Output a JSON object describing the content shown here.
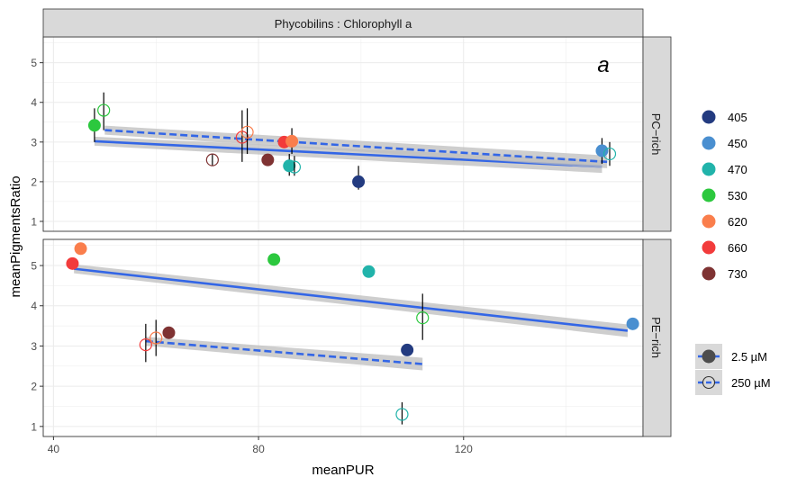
{
  "chart_data": {
    "type": "scatter",
    "facet_title": "Phycobilins : Chlorophyll a",
    "panel_label": "a",
    "xlabel": "meanPUR",
    "ylabel": "meanPigmentsRatio",
    "xlim": [
      38,
      155
    ],
    "x_ticks": [
      40,
      80,
      120
    ],
    "y_ticks": [
      1,
      2,
      3,
      4,
      5
    ],
    "grid": true,
    "legend_position": "right",
    "colors": {
      "405": "#233B80",
      "450": "#4A8FD0",
      "470": "#21B3AA",
      "530": "#2CC83E",
      "620": "#FA7E4C",
      "660": "#F23B3B",
      "730": "#7F3333"
    },
    "legend_wavelength": {
      "entries": [
        {
          "label": "405",
          "color": "#233B80"
        },
        {
          "label": "450",
          "color": "#4A8FD0"
        },
        {
          "label": "470",
          "color": "#21B3AA"
        },
        {
          "label": "530",
          "color": "#2CC83E"
        },
        {
          "label": "620",
          "color": "#FA7E4C"
        },
        {
          "label": "660",
          "color": "#F23B3B"
        },
        {
          "label": "730",
          "color": "#7F3333"
        }
      ]
    },
    "legend_concentration": {
      "entries": [
        {
          "label": "2.5 µM",
          "line": "solid",
          "marker": "filled"
        },
        {
          "label": "250 µM",
          "line": "dashed",
          "marker": "open"
        }
      ]
    },
    "panels": [
      {
        "strip": "PC−rich",
        "ylim": [
          0.75,
          5.65
        ],
        "points": [
          {
            "wl": "530",
            "x": 48.0,
            "y": 3.42,
            "conc": "2.5",
            "err": [
              3.0,
              3.85
            ]
          },
          {
            "wl": "530",
            "x": 49.8,
            "y": 3.8,
            "conc": "250",
            "err": [
              3.3,
              4.25
            ]
          },
          {
            "wl": "730",
            "x": 71.0,
            "y": 2.55,
            "conc": "250",
            "err": [
              2.4,
              2.7
            ]
          },
          {
            "wl": "660",
            "x": 76.8,
            "y": 3.12,
            "conc": "250",
            "err": [
              2.5,
              3.8
            ]
          },
          {
            "wl": "620",
            "x": 77.8,
            "y": 3.25,
            "conc": "250",
            "err": [
              2.7,
              3.85
            ]
          },
          {
            "wl": "730",
            "x": 81.8,
            "y": 2.55,
            "conc": "2.5"
          },
          {
            "wl": "660",
            "x": 85.0,
            "y": 3.0,
            "conc": "2.5"
          },
          {
            "wl": "620",
            "x": 86.5,
            "y": 3.02,
            "conc": "2.5",
            "err": [
              2.7,
              3.35
            ]
          },
          {
            "wl": "470",
            "x": 86.0,
            "y": 2.4,
            "conc": "2.5",
            "err": [
              2.15,
              2.7
            ]
          },
          {
            "wl": "470",
            "x": 87.0,
            "y": 2.37,
            "conc": "250",
            "err": [
              2.15,
              2.65
            ]
          },
          {
            "wl": "405",
            "x": 99.5,
            "y": 2.0,
            "conc": "2.5",
            "err": [
              1.8,
              2.4
            ]
          },
          {
            "wl": "450",
            "x": 147.0,
            "y": 2.78,
            "conc": "2.5",
            "err": [
              2.45,
              3.1
            ]
          },
          {
            "wl": "470",
            "x": 148.5,
            "y": 2.7,
            "conc": "250",
            "err": [
              2.4,
              3.0
            ]
          }
        ],
        "fits": [
          {
            "conc": "2.5",
            "x": [
              48,
              147
            ],
            "y": [
              3.02,
              2.38
            ]
          },
          {
            "conc": "250",
            "x": [
              50,
              148
            ],
            "y": [
              3.3,
              2.5
            ]
          }
        ]
      },
      {
        "strip": "PE−rich",
        "ylim": [
          0.75,
          5.65
        ],
        "points": [
          {
            "wl": "660",
            "x": 43.7,
            "y": 5.05,
            "conc": "2.5"
          },
          {
            "wl": "620",
            "x": 45.3,
            "y": 5.42,
            "conc": "2.5"
          },
          {
            "wl": "660",
            "x": 58.0,
            "y": 3.03,
            "conc": "250",
            "err": [
              2.6,
              3.55
            ]
          },
          {
            "wl": "620",
            "x": 60.0,
            "y": 3.2,
            "conc": "250",
            "err": [
              2.75,
              3.65
            ]
          },
          {
            "wl": "730",
            "x": 62.5,
            "y": 3.33,
            "conc": "2.5"
          },
          {
            "wl": "530",
            "x": 83.0,
            "y": 5.15,
            "conc": "2.5"
          },
          {
            "wl": "470",
            "x": 101.5,
            "y": 4.85,
            "conc": "2.5"
          },
          {
            "wl": "405",
            "x": 109.0,
            "y": 2.9,
            "conc": "2.5"
          },
          {
            "wl": "470",
            "x": 108.0,
            "y": 1.3,
            "conc": "250",
            "err": [
              1.05,
              1.6
            ]
          },
          {
            "wl": "530",
            "x": 112.0,
            "y": 3.7,
            "conc": "250",
            "err": [
              3.15,
              4.3
            ]
          },
          {
            "wl": "450",
            "x": 153.0,
            "y": 3.55,
            "conc": "2.5"
          }
        ],
        "fits": [
          {
            "conc": "2.5",
            "x": [
              44,
              152
            ],
            "y": [
              4.92,
              3.38
            ]
          },
          {
            "conc": "250",
            "x": [
              58,
              112
            ],
            "y": [
              3.12,
              2.55
            ]
          }
        ]
      }
    ]
  }
}
